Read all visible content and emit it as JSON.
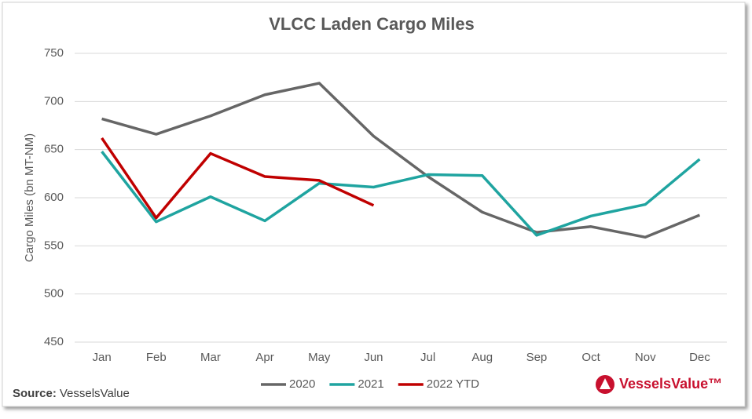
{
  "chart_data": {
    "type": "line",
    "title": "VLCC Laden Cargo Miles",
    "y_label": "Cargo Miles (bn MT-NM)",
    "categories": [
      "Jan",
      "Feb",
      "Mar",
      "Apr",
      "May",
      "Jun",
      "Jul",
      "Aug",
      "Sep",
      "Oct",
      "Nov",
      "Dec"
    ],
    "series": [
      {
        "name": "2020",
        "color": "#666666",
        "values": [
          682,
          666,
          685,
          707,
          719,
          664,
          622,
          585,
          564,
          570,
          559,
          582
        ]
      },
      {
        "name": "2021",
        "color": "#1fa4a0",
        "values": [
          648,
          575,
          601,
          576,
          615,
          611,
          624,
          623,
          561,
          581,
          593,
          640
        ]
      },
      {
        "name": "2022 YTD",
        "color": "#c00000",
        "values": [
          662,
          579,
          646,
          622,
          618,
          592,
          null,
          null,
          null,
          null,
          null,
          null
        ]
      }
    ],
    "ylim": [
      450,
      750
    ],
    "yticks": [
      450,
      500,
      550,
      600,
      650,
      700,
      750
    ],
    "grid": true,
    "legend": "bottom",
    "source_label": "Source:",
    "source_text": "VesselsValue",
    "logo_text": "VesselsValue™"
  }
}
